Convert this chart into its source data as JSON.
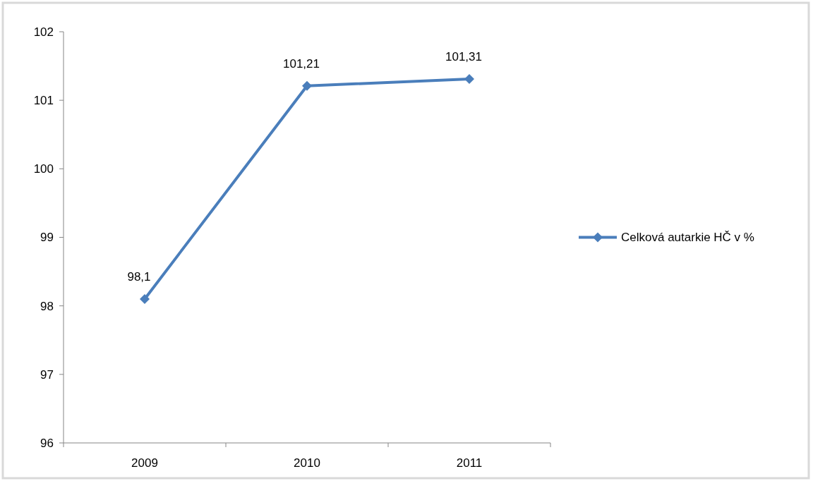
{
  "chart_data": {
    "type": "line",
    "categories": [
      "2009",
      "2010",
      "2011"
    ],
    "series": [
      {
        "name": "Celková autarkie HČ v %",
        "color": "#4a7ebb",
        "values": [
          98.1,
          101.21,
          101.31
        ],
        "value_labels": [
          "98,1",
          "101,21",
          "101,31"
        ]
      }
    ],
    "ylim": [
      96,
      102
    ],
    "yticks": [
      96,
      97,
      98,
      99,
      100,
      101,
      102
    ],
    "grid": false,
    "legend": "right",
    "marker": "diamond",
    "line_style": "solid"
  }
}
